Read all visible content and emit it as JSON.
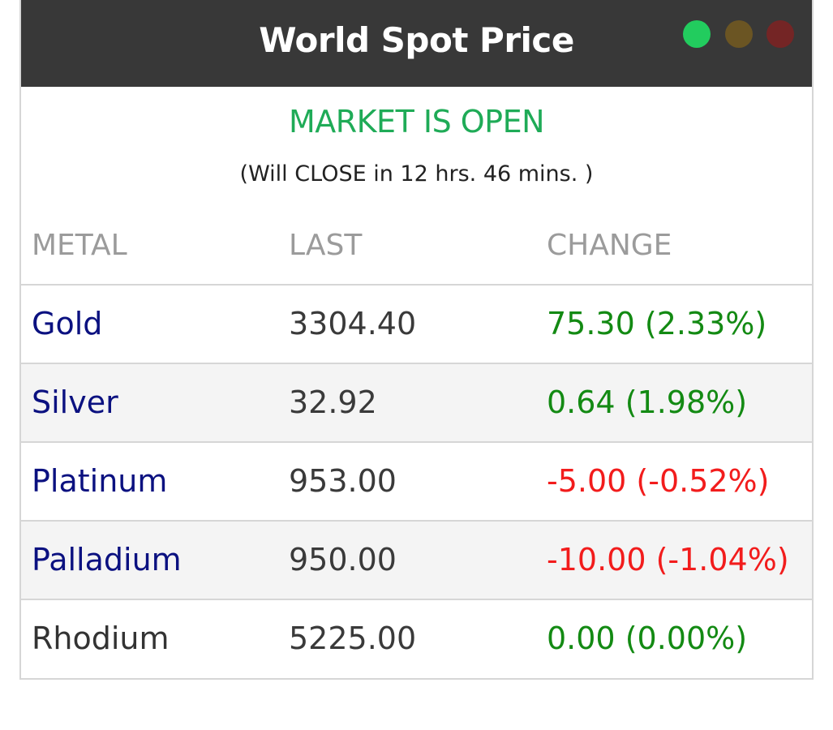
{
  "widget": {
    "title": "World Spot Price",
    "window_controls": [
      "green-dot",
      "olive-dot",
      "red-dot"
    ],
    "status": "MARKET IS OPEN",
    "countdown": "(Will CLOSE in 12 hrs. 46 mins. )",
    "colors": {
      "titlebar": "#383838",
      "status_green": "#1fab57",
      "up": "#138a13",
      "down": "#f21c1c",
      "metal_link": "#0b1180"
    }
  },
  "table": {
    "headers": [
      "METAL",
      "LAST",
      "CHANGE"
    ],
    "rows": [
      {
        "metal": "Gold",
        "last": "3304.40",
        "change": "75.30 (2.33%)"
      },
      {
        "metal": "Silver",
        "last": "32.92",
        "change": "0.64 (1.98%)"
      },
      {
        "metal": "Platinum",
        "last": "953.00",
        "change": "-5.00 (-0.52%)"
      },
      {
        "metal": "Palladium",
        "last": "950.00",
        "change": "-10.00 (-1.04%)"
      },
      {
        "metal": "Rhodium",
        "last": "5225.00",
        "change": "0.00 (0.00%)"
      }
    ]
  }
}
